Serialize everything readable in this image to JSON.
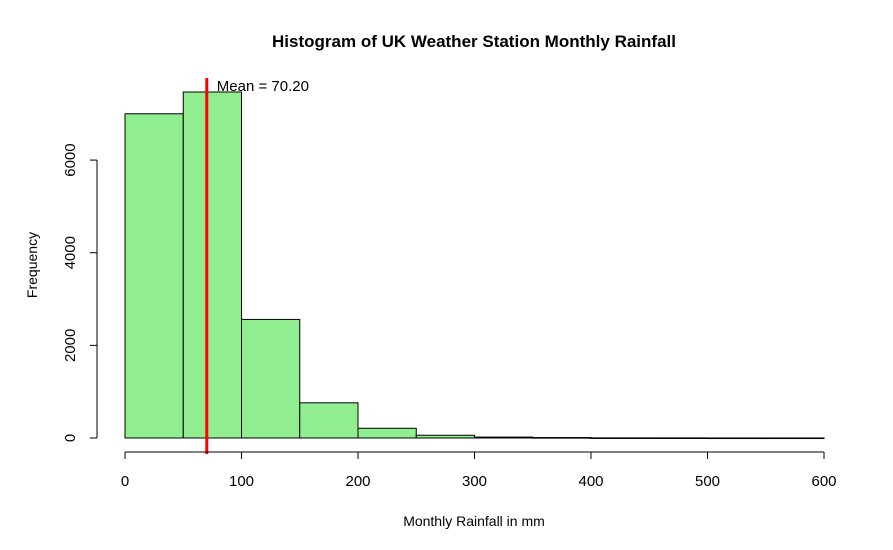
{
  "chart_data": {
    "type": "bar",
    "title": "Histogram of UK Weather Station Monthly Rainfall",
    "xlabel": "Monthly Rainfall in mm",
    "ylabel": "Frequency",
    "bin_edges": [
      0,
      50,
      100,
      150,
      200,
      250,
      300,
      350,
      400,
      450,
      500,
      550,
      600
    ],
    "values": [
      7000,
      7470,
      2560,
      760,
      210,
      60,
      20,
      10,
      3,
      2,
      1,
      1
    ],
    "xlim": [
      0,
      600
    ],
    "ylim": [
      0,
      7470
    ],
    "x_ticks": [
      "0",
      "100",
      "200",
      "300",
      "400",
      "500",
      "600"
    ],
    "y_ticks": [
      "0",
      "2000",
      "4000",
      "6000"
    ],
    "bar_color": "#90ee90",
    "bar_border_color": "#000000",
    "grid": false,
    "mean_line": {
      "value": 70.2,
      "color": "#ff0000",
      "label": "Mean = 70.20"
    }
  }
}
